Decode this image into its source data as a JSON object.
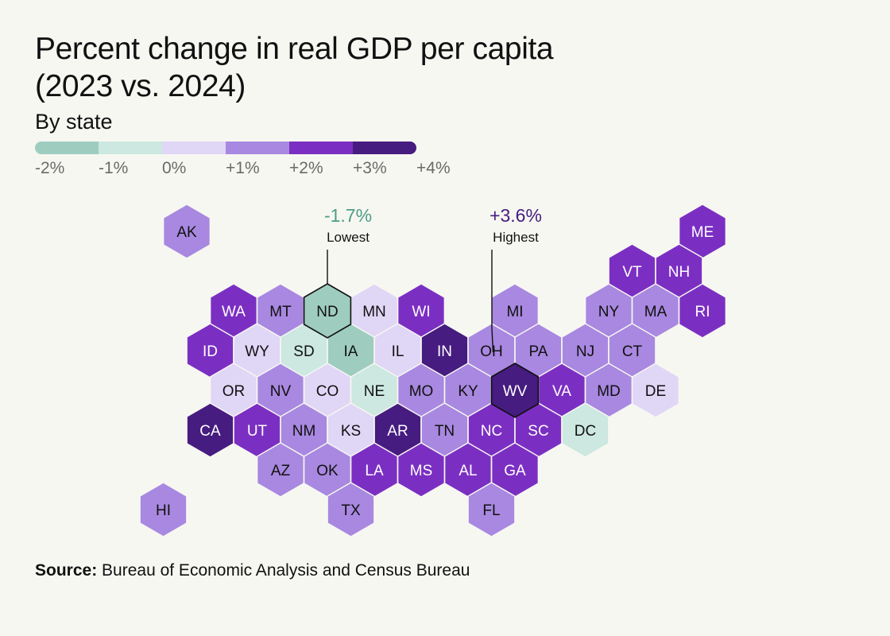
{
  "title": {
    "line1": "Percent change in real GDP per capita",
    "line2": "(2023 vs. 2024)"
  },
  "subtitle": "By state",
  "legend": {
    "bins": [
      {
        "from": "-2%",
        "to": "-1%",
        "color": "#9ecdc0"
      },
      {
        "from": "-1%",
        "to": "0%",
        "color": "#cce8e0"
      },
      {
        "from": "0%",
        "to": "+1%",
        "color": "#e0d6f6"
      },
      {
        "from": "+1%",
        "to": "+2%",
        "color": "#a888e0"
      },
      {
        "from": "+2%",
        "to": "+3%",
        "color": "#7b2fc2"
      },
      {
        "from": "+3%",
        "to": "+4%",
        "color": "#461c80"
      }
    ],
    "ticks": [
      "-2%",
      "-1%",
      "0%",
      "+1%",
      "+2%",
      "+3%",
      "+4%"
    ]
  },
  "annotations": {
    "lowest": {
      "value": "-1.7%",
      "label": "Lowest",
      "state": "ND",
      "value_color": "#4e9d87"
    },
    "highest": {
      "value": "+3.6%",
      "label": "Highest",
      "state": "WV",
      "value_color": "#461c80"
    }
  },
  "states": [
    {
      "abbr": "AK",
      "row": 0,
      "col": 0,
      "bin": 3
    },
    {
      "abbr": "ME",
      "row": 0,
      "col": 11,
      "bin": 4
    },
    {
      "abbr": "VT",
      "row": 1,
      "col": 10,
      "bin": 4
    },
    {
      "abbr": "NH",
      "row": 1,
      "col": 11,
      "bin": 4
    },
    {
      "abbr": "WA",
      "row": 2,
      "col": 1,
      "bin": 4
    },
    {
      "abbr": "MT",
      "row": 2,
      "col": 2,
      "bin": 3
    },
    {
      "abbr": "ND",
      "row": 2,
      "col": 3,
      "bin": 0
    },
    {
      "abbr": "MN",
      "row": 2,
      "col": 4,
      "bin": 2
    },
    {
      "abbr": "WI",
      "row": 2,
      "col": 5,
      "bin": 4
    },
    {
      "abbr": "MI",
      "row": 2,
      "col": 7,
      "bin": 3
    },
    {
      "abbr": "NY",
      "row": 2,
      "col": 9,
      "bin": 3
    },
    {
      "abbr": "MA",
      "row": 2,
      "col": 10,
      "bin": 3
    },
    {
      "abbr": "RI",
      "row": 2,
      "col": 11,
      "bin": 4
    },
    {
      "abbr": "ID",
      "row": 3,
      "col": 1,
      "bin": 4
    },
    {
      "abbr": "WY",
      "row": 3,
      "col": 2,
      "bin": 2
    },
    {
      "abbr": "SD",
      "row": 3,
      "col": 3,
      "bin": 1
    },
    {
      "abbr": "IA",
      "row": 3,
      "col": 4,
      "bin": 0
    },
    {
      "abbr": "IL",
      "row": 3,
      "col": 5,
      "bin": 2
    },
    {
      "abbr": "IN",
      "row": 3,
      "col": 6,
      "bin": 5
    },
    {
      "abbr": "OH",
      "row": 3,
      "col": 7,
      "bin": 3
    },
    {
      "abbr": "PA",
      "row": 3,
      "col": 8,
      "bin": 3
    },
    {
      "abbr": "NJ",
      "row": 3,
      "col": 9,
      "bin": 3
    },
    {
      "abbr": "CT",
      "row": 3,
      "col": 10,
      "bin": 3
    },
    {
      "abbr": "OR",
      "row": 4,
      "col": 1,
      "bin": 2
    },
    {
      "abbr": "NV",
      "row": 4,
      "col": 2,
      "bin": 3
    },
    {
      "abbr": "CO",
      "row": 4,
      "col": 3,
      "bin": 2
    },
    {
      "abbr": "NE",
      "row": 4,
      "col": 4,
      "bin": 1
    },
    {
      "abbr": "MO",
      "row": 4,
      "col": 5,
      "bin": 3
    },
    {
      "abbr": "KY",
      "row": 4,
      "col": 6,
      "bin": 3
    },
    {
      "abbr": "WV",
      "row": 4,
      "col": 7,
      "bin": 5
    },
    {
      "abbr": "VA",
      "row": 4,
      "col": 8,
      "bin": 4
    },
    {
      "abbr": "MD",
      "row": 4,
      "col": 9,
      "bin": 3
    },
    {
      "abbr": "DE",
      "row": 4,
      "col": 10,
      "bin": 2
    },
    {
      "abbr": "CA",
      "row": 5,
      "col": 1,
      "bin": 5
    },
    {
      "abbr": "UT",
      "row": 5,
      "col": 2,
      "bin": 4
    },
    {
      "abbr": "NM",
      "row": 5,
      "col": 3,
      "bin": 3
    },
    {
      "abbr": "KS",
      "row": 5,
      "col": 4,
      "bin": 2
    },
    {
      "abbr": "AR",
      "row": 5,
      "col": 5,
      "bin": 5
    },
    {
      "abbr": "TN",
      "row": 5,
      "col": 6,
      "bin": 3
    },
    {
      "abbr": "NC",
      "row": 5,
      "col": 7,
      "bin": 4
    },
    {
      "abbr": "SC",
      "row": 5,
      "col": 8,
      "bin": 4
    },
    {
      "abbr": "DC",
      "row": 5,
      "col": 9,
      "bin": 1
    },
    {
      "abbr": "AZ",
      "row": 6,
      "col": 2,
      "bin": 3
    },
    {
      "abbr": "OK",
      "row": 6,
      "col": 3,
      "bin": 3
    },
    {
      "abbr": "LA",
      "row": 6,
      "col": 4,
      "bin": 4
    },
    {
      "abbr": "MS",
      "row": 6,
      "col": 5,
      "bin": 4
    },
    {
      "abbr": "AL",
      "row": 6,
      "col": 6,
      "bin": 4
    },
    {
      "abbr": "GA",
      "row": 6,
      "col": 7,
      "bin": 4
    },
    {
      "abbr": "HI",
      "row": 7,
      "col": 0,
      "bin": 3
    },
    {
      "abbr": "TX",
      "row": 7,
      "col": 4,
      "bin": 3
    },
    {
      "abbr": "FL",
      "row": 7,
      "col": 7,
      "bin": 3
    }
  ],
  "source": {
    "label": "Source:",
    "text": "Bureau of Economic Analysis and Census Bureau"
  }
}
